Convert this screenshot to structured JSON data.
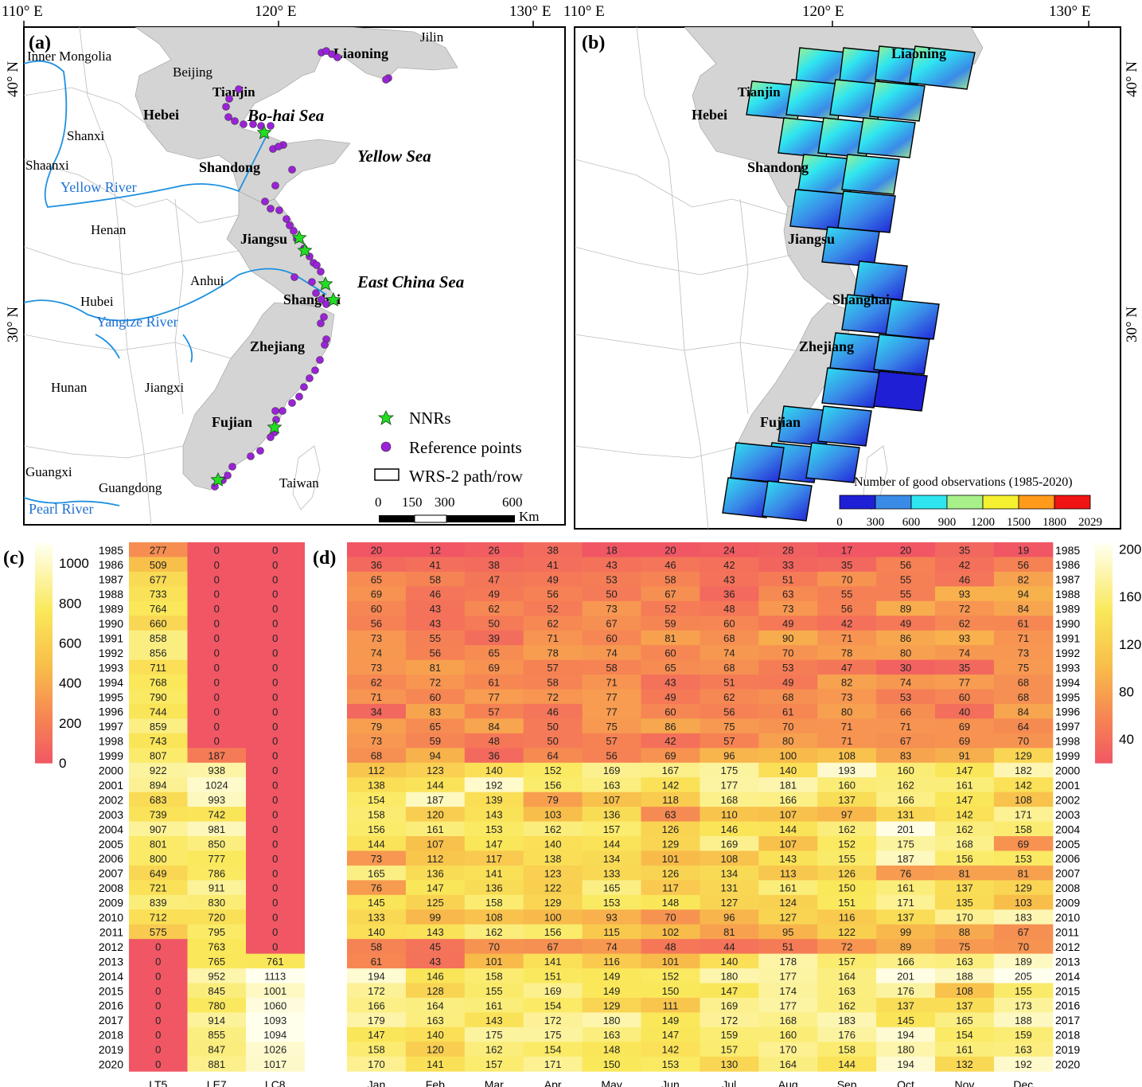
{
  "panel_labels": {
    "a": "(a)",
    "b": "(b)",
    "c": "(c)",
    "d": "(d)"
  },
  "coords": {
    "lon_labels": [
      "110° E",
      "120° E",
      "130° E"
    ],
    "lat_labels": [
      "40° N",
      "30° N"
    ]
  },
  "map_a": {
    "provinces_bold": [
      "Liaoning",
      "Tianjin",
      "Hebei",
      "Shandong",
      "Jiangsu",
      "Shanghai",
      "Zhejiang",
      "Fujian"
    ],
    "provinces_plain": [
      "Jilin",
      "Inner Mongolia",
      "Beijing",
      "Shanxi",
      "Shaanxi",
      "Henan",
      "Anhui",
      "Hubei",
      "Hunan",
      "Jiangxi",
      "Guangxi",
      "Guangdong",
      "Taiwan"
    ],
    "seas": [
      "Bo-hai Sea",
      "Yellow Sea",
      "East China Sea"
    ],
    "rivers": [
      "Yellow River",
      "Yangtze River",
      "Pearl River"
    ],
    "legend": {
      "nnrs": "NNRs",
      "reference": "Reference points",
      "wrs": "WRS-2 path/row"
    },
    "scalebar": {
      "ticks": [
        "0",
        "150",
        "300",
        "600"
      ],
      "unit": "Km"
    }
  },
  "map_b": {
    "labels": [
      "Liaoning",
      "Tianjin",
      "Hebei",
      "Shandong",
      "Jiangsu",
      "Shanghai",
      "Zhejiang",
      "Fujian"
    ],
    "colorbar_title": "Number of good observations (1985-2020)",
    "colorbar_ticks": [
      "0",
      "300",
      "600",
      "900",
      "1200",
      "1500",
      "1800",
      "2029"
    ],
    "colors": [
      "#1f1fd6",
      "#3a8ae8",
      "#2fe6f0",
      "#a8f08a",
      "#f5f030",
      "#ff9a1a",
      "#f01414"
    ]
  },
  "chart_data": [
    {
      "type": "heatmap",
      "title": "(c)",
      "years": [
        "1985",
        "1986",
        "1987",
        "1988",
        "1989",
        "1990",
        "1991",
        "1992",
        "1993",
        "1994",
        "1995",
        "1996",
        "1997",
        "1998",
        "1999",
        "2000",
        "2001",
        "2002",
        "2003",
        "2004",
        "2005",
        "2006",
        "2007",
        "2008",
        "2009",
        "2010",
        "2011",
        "2012",
        "2013",
        "2014",
        "2015",
        "2016",
        "2017",
        "2018",
        "2019",
        "2020"
      ],
      "columns": [
        "LT5",
        "LE7",
        "LC8"
      ],
      "values": [
        [
          277,
          0,
          0
        ],
        [
          509,
          0,
          0
        ],
        [
          677,
          0,
          0
        ],
        [
          733,
          0,
          0
        ],
        [
          764,
          0,
          0
        ],
        [
          660,
          0,
          0
        ],
        [
          858,
          0,
          0
        ],
        [
          856,
          0,
          0
        ],
        [
          711,
          0,
          0
        ],
        [
          768,
          0,
          0
        ],
        [
          790,
          0,
          0
        ],
        [
          744,
          0,
          0
        ],
        [
          859,
          0,
          0
        ],
        [
          743,
          0,
          0
        ],
        [
          807,
          187,
          0
        ],
        [
          922,
          938,
          0
        ],
        [
          894,
          1024,
          0
        ],
        [
          683,
          993,
          0
        ],
        [
          739,
          742,
          0
        ],
        [
          907,
          981,
          0
        ],
        [
          801,
          850,
          0
        ],
        [
          800,
          777,
          0
        ],
        [
          649,
          786,
          0
        ],
        [
          721,
          911,
          0
        ],
        [
          839,
          830,
          0
        ],
        [
          712,
          720,
          0
        ],
        [
          575,
          795,
          0
        ],
        [
          0,
          763,
          0
        ],
        [
          0,
          765,
          761
        ],
        [
          0,
          952,
          1113
        ],
        [
          0,
          845,
          1001
        ],
        [
          0,
          780,
          1060
        ],
        [
          0,
          914,
          1093
        ],
        [
          0,
          855,
          1094
        ],
        [
          0,
          847,
          1026
        ],
        [
          0,
          881,
          1017
        ]
      ],
      "colorbar_ticks": [
        "1000",
        "800",
        "600",
        "400",
        "200",
        "0"
      ],
      "vmin": 0,
      "vmax": 1100
    },
    {
      "type": "heatmap",
      "title": "(d)",
      "years": [
        "1985",
        "1986",
        "1987",
        "1988",
        "1989",
        "1990",
        "1991",
        "1992",
        "1993",
        "1994",
        "1995",
        "1996",
        "1997",
        "1998",
        "1999",
        "2000",
        "2001",
        "2002",
        "2003",
        "2004",
        "2005",
        "2006",
        "2007",
        "2008",
        "2009",
        "2010",
        "2011",
        "2012",
        "2013",
        "2014",
        "2015",
        "2016",
        "2017",
        "2018",
        "2019",
        "2020"
      ],
      "columns": [
        "Jan",
        "Feb",
        "Mar",
        "Apr",
        "May",
        "Jun",
        "Jul",
        "Aug",
        "Sep",
        "Oct",
        "Nov",
        "Dec"
      ],
      "values": [
        [
          20,
          12,
          26,
          38,
          18,
          20,
          24,
          28,
          17,
          20,
          35,
          19
        ],
        [
          36,
          41,
          38,
          41,
          43,
          46,
          42,
          33,
          35,
          56,
          42,
          56
        ],
        [
          65,
          58,
          47,
          49,
          53,
          58,
          43,
          51,
          70,
          55,
          46,
          82
        ],
        [
          69,
          46,
          49,
          56,
          50,
          67,
          36,
          63,
          55,
          55,
          93,
          94
        ],
        [
          60,
          43,
          62,
          52,
          73,
          52,
          48,
          73,
          56,
          89,
          72,
          84
        ],
        [
          56,
          43,
          50,
          62,
          67,
          59,
          60,
          49,
          42,
          49,
          62,
          61
        ],
        [
          73,
          55,
          39,
          71,
          60,
          81,
          68,
          90,
          71,
          86,
          93,
          71
        ],
        [
          74,
          56,
          65,
          78,
          74,
          60,
          74,
          70,
          78,
          80,
          74,
          73
        ],
        [
          73,
          81,
          69,
          57,
          58,
          65,
          68,
          53,
          47,
          30,
          35,
          75
        ],
        [
          62,
          72,
          61,
          58,
          71,
          43,
          51,
          49,
          82,
          74,
          77,
          68
        ],
        [
          71,
          60,
          77,
          72,
          77,
          49,
          62,
          68,
          73,
          53,
          60,
          68
        ],
        [
          34,
          83,
          57,
          46,
          77,
          60,
          56,
          61,
          80,
          66,
          40,
          84
        ],
        [
          79,
          65,
          84,
          50,
          75,
          86,
          75,
          70,
          71,
          71,
          69,
          64
        ],
        [
          73,
          59,
          48,
          50,
          57,
          42,
          57,
          80,
          71,
          67,
          69,
          70
        ],
        [
          68,
          94,
          36,
          64,
          56,
          69,
          96,
          100,
          108,
          83,
          91,
          129
        ],
        [
          112,
          123,
          140,
          152,
          169,
          167,
          175,
          140,
          193,
          160,
          147,
          182
        ],
        [
          138,
          144,
          192,
          156,
          163,
          142,
          177,
          181,
          160,
          162,
          161,
          142
        ],
        [
          154,
          187,
          139,
          79,
          107,
          118,
          168,
          166,
          137,
          166,
          147,
          108
        ],
        [
          158,
          120,
          143,
          103,
          136,
          63,
          110,
          107,
          97,
          131,
          142,
          171
        ],
        [
          156,
          161,
          153,
          162,
          157,
          126,
          146,
          144,
          162,
          201,
          162,
          158
        ],
        [
          144,
          107,
          147,
          140,
          144,
          129,
          169,
          107,
          152,
          175,
          168,
          69
        ],
        [
          73,
          112,
          117,
          138,
          134,
          101,
          108,
          143,
          155,
          187,
          156,
          153
        ],
        [
          165,
          136,
          141,
          123,
          133,
          126,
          134,
          113,
          126,
          76,
          81,
          81
        ],
        [
          76,
          147,
          136,
          122,
          165,
          117,
          131,
          161,
          150,
          161,
          137,
          129
        ],
        [
          145,
          125,
          158,
          129,
          153,
          148,
          127,
          124,
          151,
          171,
          135,
          103
        ],
        [
          133,
          99,
          108,
          100,
          93,
          70,
          96,
          127,
          116,
          137,
          170,
          183
        ],
        [
          140,
          143,
          162,
          156,
          115,
          102,
          81,
          95,
          122,
          99,
          88,
          67
        ],
        [
          58,
          45,
          70,
          67,
          74,
          48,
          44,
          51,
          72,
          89,
          75,
          70
        ],
        [
          61,
          43,
          101,
          141,
          116,
          101,
          140,
          178,
          157,
          166,
          163,
          189
        ],
        [
          194,
          146,
          158,
          151,
          149,
          152,
          180,
          177,
          164,
          201,
          188,
          205
        ],
        [
          172,
          128,
          155,
          169,
          149,
          150,
          147,
          174,
          163,
          176,
          108,
          155
        ],
        [
          166,
          164,
          161,
          154,
          129,
          111,
          169,
          177,
          162,
          137,
          137,
          173
        ],
        [
          179,
          163,
          143,
          172,
          180,
          149,
          172,
          168,
          183,
          145,
          165,
          188
        ],
        [
          147,
          140,
          175,
          175,
          163,
          147,
          159,
          160,
          176,
          194,
          154,
          159
        ],
        [
          158,
          120,
          162,
          154,
          148,
          142,
          157,
          170,
          158,
          180,
          161,
          163
        ],
        [
          170,
          141,
          157,
          171,
          150,
          153,
          130,
          164,
          144,
          194,
          132,
          192
        ]
      ],
      "colorbar_ticks": [
        "200",
        "160",
        "120",
        "80",
        "40"
      ],
      "vmin": 20,
      "vmax": 205
    }
  ]
}
